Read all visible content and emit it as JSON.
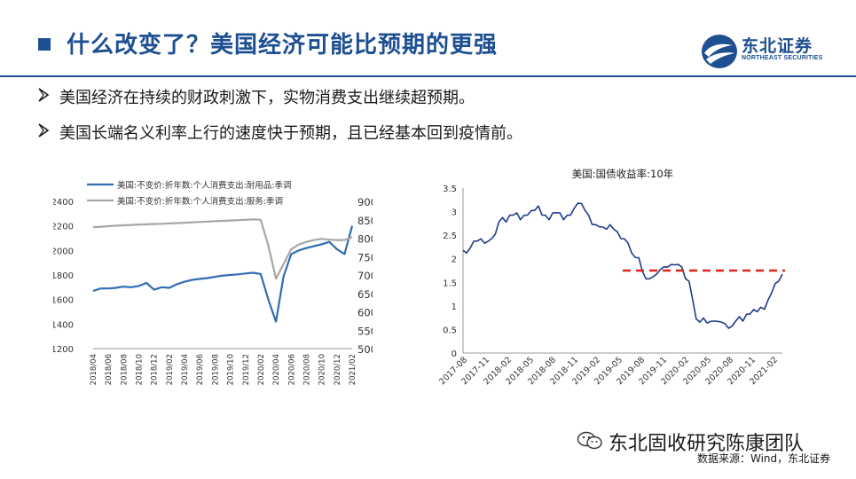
{
  "title": "什么改变了？美国经济可能比预期的更强",
  "logo": {
    "name_cn": "东北证券",
    "name_en": "NORTHEAST SECURITIES"
  },
  "bullets": [
    "美国经济在持续的财政刺激下，实物消费支出继续超预期。",
    "美国长端名义利率上行的速度快于预期，且已经基本回到疫情前。"
  ],
  "watermark": "东北固收研究陈康团队",
  "source": "数据来源：Wind，东北证券",
  "colors": {
    "brand": "#1d4f91",
    "durable": "#2f6db5",
    "services": "#a6a6a6",
    "treasury": "#1f3c8c",
    "threshold": "#e0241b"
  },
  "chart_data": [
    {
      "type": "line",
      "title": "",
      "x": [
        "2018/04",
        "2018/05",
        "2018/06",
        "2018/07",
        "2018/08",
        "2018/09",
        "2018/10",
        "2018/11",
        "2018/12",
        "2019/01",
        "2019/02",
        "2019/03",
        "2019/04",
        "2019/05",
        "2019/06",
        "2019/07",
        "2019/08",
        "2019/09",
        "2019/10",
        "2019/11",
        "2019/12",
        "2020/01",
        "2020/02",
        "2020/03",
        "2020/04",
        "2020/05",
        "2020/06",
        "2020/07",
        "2020/08",
        "2020/09",
        "2020/10",
        "2020/11",
        "2020/12",
        "2021/01",
        "2021/02"
      ],
      "x_tick_labels": [
        "2018/04",
        "2018/06",
        "2018/08",
        "2018/10",
        "2018/12",
        "2019/02",
        "2019/04",
        "2019/06",
        "2019/08",
        "2019/10",
        "2019/12",
        "2020/02",
        "2020/04",
        "2020/06",
        "2020/08",
        "2020/10",
        "2020/12",
        "2021/02"
      ],
      "series": [
        {
          "name": "美国:不变价:折年数:个人消费支出:耐用品:季调",
          "axis": "left",
          "values": [
            1670,
            1690,
            1690,
            1695,
            1705,
            1700,
            1710,
            1735,
            1680,
            1700,
            1695,
            1725,
            1745,
            1760,
            1768,
            1775,
            1785,
            1795,
            1800,
            1805,
            1812,
            1818,
            1808,
            1600,
            1420,
            1790,
            1970,
            2000,
            2020,
            2035,
            2050,
            2070,
            2010,
            1970,
            2200
          ]
        },
        {
          "name": "美国:不变价:折年数:个人消费支出:服务:季调",
          "axis": "right",
          "values": [
            8300,
            8310,
            8325,
            8340,
            8350,
            8360,
            8370,
            8375,
            8385,
            8390,
            8400,
            8410,
            8420,
            8430,
            8440,
            8450,
            8460,
            8470,
            8480,
            8490,
            8500,
            8510,
            8500,
            7800,
            6900,
            7300,
            7700,
            7830,
            7900,
            7950,
            7980,
            7960,
            7950,
            7950,
            8030
          ]
        }
      ],
      "ylim_left": [
        1200,
        2400
      ],
      "yticks_left": [
        1200,
        1400,
        1600,
        1800,
        2000,
        2200,
        2400
      ],
      "ylim_right": [
        5000,
        9000
      ],
      "yticks_right": [
        5000,
        5500,
        6000,
        6500,
        7000,
        7500,
        8000,
        8500,
        9000
      ],
      "legend_position": "top"
    },
    {
      "type": "line",
      "title": "美国:国债收益率:10年",
      "x_tick_labels": [
        "2017-08",
        "2017-11",
        "2018-02",
        "2018-05",
        "2018-08",
        "2018-11",
        "2019-02",
        "2019-05",
        "2019-08",
        "2019-11",
        "2020-02",
        "2020-05",
        "2020-08",
        "2020-11",
        "2021-02"
      ],
      "series": [
        {
          "name": "",
          "values": [
            2.2,
            2.1,
            2.25,
            2.35,
            2.4,
            2.4,
            2.35,
            2.35,
            2.45,
            2.5,
            2.8,
            2.85,
            2.8,
            2.9,
            2.95,
            2.95,
            2.85,
            2.9,
            2.95,
            3.0,
            3.05,
            3.1,
            2.95,
            2.9,
            2.85,
            2.95,
            3.0,
            2.95,
            2.85,
            2.9,
            2.95,
            3.05,
            3.2,
            3.15,
            3.05,
            2.9,
            2.75,
            2.7,
            2.7,
            2.65,
            2.65,
            2.7,
            2.65,
            2.55,
            2.45,
            2.4,
            2.35,
            2.1,
            2.05,
            2.0,
            1.75,
            1.55,
            1.6,
            1.6,
            1.7,
            1.75,
            1.85,
            1.8,
            1.9,
            1.85,
            1.9,
            1.8,
            1.6,
            1.5,
            1.15,
            0.7,
            0.68,
            0.72,
            0.66,
            0.65,
            0.7,
            0.65,
            0.68,
            0.6,
            0.55,
            0.55,
            0.7,
            0.75,
            0.7,
            0.8,
            0.85,
            0.9,
            0.9,
            0.95,
            0.95,
            1.1,
            1.3,
            1.45,
            1.55,
            1.65
          ]
        }
      ],
      "threshold": {
        "value": 1.75,
        "from_label": "2019-05",
        "to_label": "2021-02",
        "style": "dashed"
      },
      "ylim": [
        0,
        3.5
      ],
      "yticks": [
        0,
        0.5,
        1,
        1.5,
        2,
        2.5,
        3,
        3.5
      ]
    }
  ]
}
